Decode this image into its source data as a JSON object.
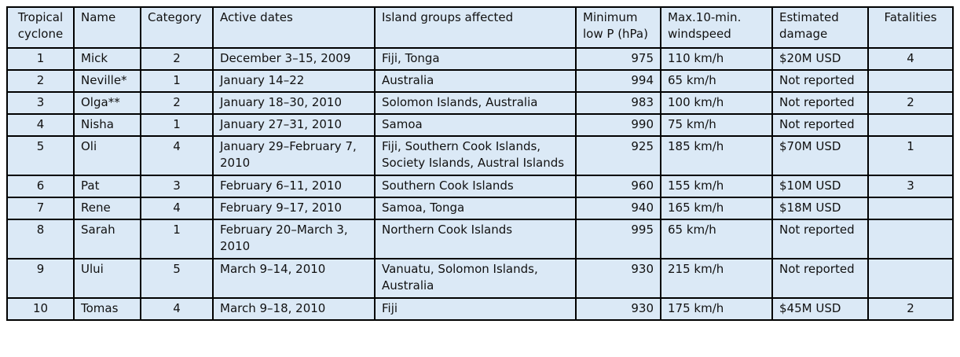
{
  "table": {
    "header": [
      "Tropical cyclone",
      "Name",
      "Category",
      "Active dates",
      "Island groups affected",
      "Minimum low P (hPa)",
      "Max.10-min. windspeed",
      "Estimated damage",
      "Fatalities"
    ],
    "rows": [
      [
        "1",
        "Mick",
        "2",
        "December 3–15, 2009",
        "Fiji, Tonga",
        "975",
        "110 km/h",
        "$20M USD",
        "4"
      ],
      [
        "2",
        "Neville*",
        "1",
        "January 14–22",
        "Australia",
        "994",
        "65 km/h",
        "Not reported",
        null
      ],
      [
        "3",
        "Olga**",
        "2",
        "January 18–30, 2010",
        "Solomon Islands, Australia",
        "983",
        "100 km/h",
        "Not reported",
        "2"
      ],
      [
        "4",
        "Nisha",
        "1",
        "January 27–31, 2010",
        "Samoa",
        "990",
        "75 km/h",
        "Not reported",
        null
      ],
      [
        "5",
        "Oli",
        "4",
        "January 29–February 7, 2010",
        "Fiji, Southern Cook Islands, Society Islands, Austral Islands",
        "925",
        "185 km/h",
        "$70M USD",
        "1"
      ],
      [
        "6",
        "Pat",
        "3",
        "February 6–11, 2010",
        "Southern Cook Islands",
        "960",
        "155 km/h",
        "$10M USD",
        "3"
      ],
      [
        "7",
        "Rene",
        "4",
        "February 9–17, 2010",
        "Samoa, Tonga",
        "940",
        "165 km/h",
        "$18M USD",
        null
      ],
      [
        "8",
        "Sarah",
        "1",
        "February 20–March 3, 2010",
        "Northern Cook Islands",
        "995",
        "65 km/h",
        "Not reported",
        null
      ],
      [
        "9",
        "Ului",
        "5",
        "March 9–14, 2010",
        "Vanuatu, Solomon Islands, Australia",
        "930",
        "215 km/h",
        "Not reported",
        null
      ],
      [
        "10",
        "Tomas",
        "4",
        "March 9–18, 2010",
        "Fiji",
        "930",
        "175 km/h",
        "$45M USD",
        "2"
      ]
    ]
  }
}
